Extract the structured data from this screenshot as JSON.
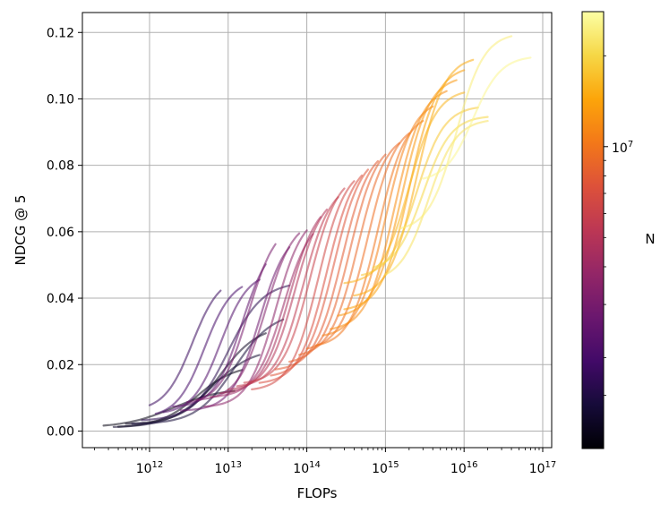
{
  "chart_data": {
    "type": "line",
    "title": "",
    "xlabel": "FLOPs",
    "ylabel": "NDCG @ 5",
    "x_scale": "log",
    "xlim": [
      140000000000.0,
      1.3e+17
    ],
    "ylim": [
      -0.005,
      0.126
    ],
    "grid": true,
    "x_ticks": [
      {
        "value": 1000000000000.0,
        "base": "10",
        "exp": "12"
      },
      {
        "value": 10000000000000.0,
        "base": "10",
        "exp": "13"
      },
      {
        "value": 100000000000000.0,
        "base": "10",
        "exp": "14"
      },
      {
        "value": 1000000000000000.0,
        "base": "10",
        "exp": "15"
      },
      {
        "value": 1e+16,
        "base": "10",
        "exp": "16"
      },
      {
        "value": 1e+17,
        "base": "10",
        "exp": "17"
      }
    ],
    "y_ticks": [
      {
        "value": 0.0,
        "label": "0.00"
      },
      {
        "value": 0.02,
        "label": "0.02"
      },
      {
        "value": 0.04,
        "label": "0.04"
      },
      {
        "value": 0.06,
        "label": "0.06"
      },
      {
        "value": 0.08,
        "label": "0.08"
      },
      {
        "value": 0.1,
        "label": "0.10"
      },
      {
        "value": 0.12,
        "label": "0.12"
      }
    ],
    "colorbar": {
      "label": "N",
      "colormap": "inferno",
      "scale": "log",
      "range": [
        1000000.0,
        28000000.0
      ],
      "major_tick": {
        "value": 10000000.0,
        "base": "10",
        "exp": "7"
      },
      "minor_ticks": [
        1500000.0,
        2000000.0,
        3000000.0,
        4000000.0,
        5000000.0,
        6000000.0,
        7000000.0,
        8000000.0,
        9000000.0,
        20000000.0
      ]
    },
    "series_style": {
      "opacity": 0.55
    },
    "series": [
      {
        "N": 1100000.0,
        "start": 260000000000.0,
        "end": 12000000000000.0,
        "y0": 0.001,
        "y1": 0.013,
        "mid": 2000000000000.0,
        "width": 1.4
      },
      {
        "N": 1100000.0,
        "start": 400000000000.0,
        "end": 15000000000000.0,
        "y0": 0.001,
        "y1": 0.02,
        "mid": 4000000000000.0,
        "width": 1.1
      },
      {
        "N": 1200000.0,
        "start": 500000000000.0,
        "end": 30000000000000.0,
        "y0": 0.002,
        "y1": 0.032,
        "mid": 8000000000000.0,
        "width": 1.1
      },
      {
        "N": 1300000.0,
        "start": 350000000000.0,
        "end": 25000000000000.0,
        "y0": 0.001,
        "y1": 0.025,
        "mid": 6000000000000.0,
        "width": 1.2
      },
      {
        "N": 1400000.0,
        "start": 600000000000.0,
        "end": 50000000000000.0,
        "y0": 0.002,
        "y1": 0.036,
        "mid": 12000000000000.0,
        "width": 1.1
      },
      {
        "N": 1600000.0,
        "start": 800000000000.0,
        "end": 60000000000000.0,
        "y0": 0.003,
        "y1": 0.045,
        "mid": 10000000000000.0,
        "width": 1.0
      },
      {
        "N": 1800000.0,
        "start": 1000000000000.0,
        "end": 8000000000000.0,
        "y0": 0.006,
        "y1": 0.047,
        "mid": 3500000000000.0,
        "width": 0.8
      },
      {
        "N": 2000000.0,
        "start": 1200000000000.0,
        "end": 15000000000000.0,
        "y0": 0.004,
        "y1": 0.046,
        "mid": 5000000000000.0,
        "width": 0.8
      },
      {
        "N": 2200000.0,
        "start": 1500000000000.0,
        "end": 25000000000000.0,
        "y0": 0.005,
        "y1": 0.048,
        "mid": 8000000000000.0,
        "width": 0.8
      },
      {
        "N": 2500000.0,
        "start": 2000000000000.0,
        "end": 30000000000000.0,
        "y0": 0.007,
        "y1": 0.058,
        "mid": 15000000000000.0,
        "width": 0.8
      },
      {
        "N": 2800000.0,
        "start": 2500000000000.0,
        "end": 60000000000000.0,
        "y0": 0.006,
        "y1": 0.061,
        "mid": 25000000000000.0,
        "width": 0.8
      },
      {
        "N": 3000000.0,
        "start": 3000000000000.0,
        "end": 40000000000000.0,
        "y0": 0.008,
        "y1": 0.063,
        "mid": 18000000000000.0,
        "width": 0.8
      },
      {
        "N": 3300000.0,
        "start": 4000000000000.0,
        "end": 80000000000000.0,
        "y0": 0.009,
        "y1": 0.064,
        "mid": 30000000000000.0,
        "width": 0.8
      },
      {
        "N": 3600000.0,
        "start": 5000000000000.0,
        "end": 100000000000000.0,
        "y0": 0.007,
        "y1": 0.066,
        "mid": 40000000000000.0,
        "width": 0.8
      },
      {
        "N": 4000000.0,
        "start": 6000000000000.0,
        "end": 120000000000000.0,
        "y0": 0.01,
        "y1": 0.065,
        "mid": 50000000000000.0,
        "width": 0.8
      },
      {
        "N": 4500000.0,
        "start": 8000000000000.0,
        "end": 150000000000000.0,
        "y0": 0.011,
        "y1": 0.07,
        "mid": 60000000000000.0,
        "width": 0.8
      },
      {
        "N": 5000000.0,
        "start": 10000000000000.0,
        "end": 180000000000000.0,
        "y0": 0.012,
        "y1": 0.072,
        "mid": 70000000000000.0,
        "width": 0.8
      },
      {
        "N": 5500000.0,
        "start": 13000000000000.0,
        "end": 250000000000000.0,
        "y0": 0.013,
        "y1": 0.075,
        "mid": 90000000000000.0,
        "width": 0.8
      },
      {
        "N": 6000000.0,
        "start": 16000000000000.0,
        "end": 300000000000000.0,
        "y0": 0.014,
        "y1": 0.078,
        "mid": 110000000000000.0,
        "width": 0.8
      },
      {
        "N": 6500000.0,
        "start": 20000000000000.0,
        "end": 400000000000000.0,
        "y0": 0.012,
        "y1": 0.08,
        "mid": 140000000000000.0,
        "width": 0.8
      },
      {
        "N": 7000000.0,
        "start": 25000000000000.0,
        "end": 500000000000000.0,
        "y0": 0.014,
        "y1": 0.082,
        "mid": 180000000000000.0,
        "width": 0.8
      },
      {
        "N": 7500000.0,
        "start": 35000000000000.0,
        "end": 600000000000000.0,
        "y0": 0.016,
        "y1": 0.084,
        "mid": 220000000000000.0,
        "width": 0.8
      },
      {
        "N": 8000000.0,
        "start": 40000000000000.0,
        "end": 800000000000000.0,
        "y0": 0.018,
        "y1": 0.086,
        "mid": 280000000000000.0,
        "width": 0.8
      },
      {
        "N": 8500000.0,
        "start": 60000000000000.0,
        "end": 1000000000000000.0,
        "y0": 0.02,
        "y1": 0.088,
        "mid": 350000000000000.0,
        "width": 0.8
      },
      {
        "N": 9000000.0,
        "start": 80000000000000.0,
        "end": 1500000000000000.0,
        "y0": 0.022,
        "y1": 0.09,
        "mid": 450000000000000.0,
        "width": 0.8
      },
      {
        "N": 9500000.0,
        "start": 100000000000000.0,
        "end": 2000000000000000.0,
        "y0": 0.024,
        "y1": 0.093,
        "mid": 600000000000000.0,
        "width": 0.8
      },
      {
        "N": 10000000.0,
        "start": 130000000000000.0,
        "end": 3000000000000000.0,
        "y0": 0.025,
        "y1": 0.096,
        "mid": 800000000000000.0,
        "width": 0.8
      },
      {
        "N": 11000000.0,
        "start": 160000000000000.0,
        "end": 4000000000000000.0,
        "y0": 0.028,
        "y1": 0.1,
        "mid": 1000000000000000.0,
        "width": 0.8
      },
      {
        "N": 12000000.0,
        "start": 200000000000000.0,
        "end": 6000000000000000.0,
        "y0": 0.03,
        "y1": 0.104,
        "mid": 1300000000000000.0,
        "width": 0.8
      },
      {
        "N": 13000000.0,
        "start": 250000000000000.0,
        "end": 8000000000000000.0,
        "y0": 0.034,
        "y1": 0.107,
        "mid": 1600000000000000.0,
        "width": 0.8
      },
      {
        "N": 14000000.0,
        "start": 300000000000000.0,
        "end": 1e+16,
        "y0": 0.036,
        "y1": 0.11,
        "mid": 2000000000000000.0,
        "width": 0.8
      },
      {
        "N": 15000000.0,
        "start": 400000000000000.0,
        "end": 1.3e+16,
        "y0": 0.04,
        "y1": 0.113,
        "mid": 2500000000000000.0,
        "width": 0.8
      },
      {
        "N": 16000000.0,
        "start": 300000000000000.0,
        "end": 1e+16,
        "y0": 0.044,
        "y1": 0.103,
        "mid": 2000000000000000.0,
        "width": 0.8
      },
      {
        "N": 18000000.0,
        "start": 500000000000000.0,
        "end": 1.5e+16,
        "y0": 0.046,
        "y1": 0.098,
        "mid": 2500000000000000.0,
        "width": 0.8
      },
      {
        "N": 20000000.0,
        "start": 700000000000000.0,
        "end": 2e+16,
        "y0": 0.048,
        "y1": 0.095,
        "mid": 3000000000000000.0,
        "width": 0.8
      },
      {
        "N": 22000000.0,
        "start": 1000000000000000.0,
        "end": 2e+16,
        "y0": 0.045,
        "y1": 0.094,
        "mid": 3500000000000000.0,
        "width": 0.8
      },
      {
        "N": 24000000.0,
        "start": 1500000000000000.0,
        "end": 4e+16,
        "y0": 0.06,
        "y1": 0.12,
        "mid": 8000000000000000.0,
        "width": 0.8
      },
      {
        "N": 26000000.0,
        "start": 3000000000000000.0,
        "end": 7e+16,
        "y0": 0.075,
        "y1": 0.113,
        "mid": 1.3e+16,
        "width": 0.8
      }
    ]
  }
}
